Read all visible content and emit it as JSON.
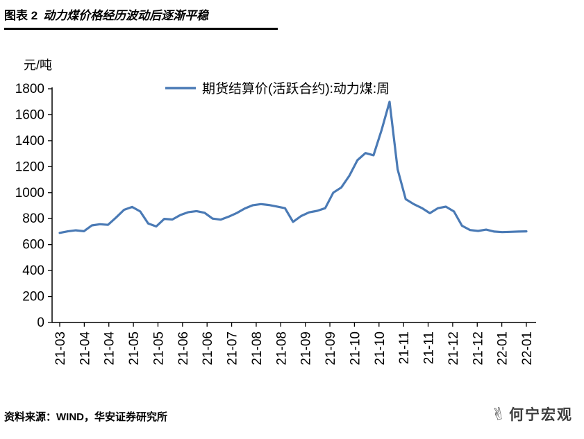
{
  "header": {
    "prefix": "图表 2",
    "title": "动力煤价格经历波动后逐渐平稳"
  },
  "chart_data": {
    "type": "line",
    "title": "",
    "ylabel": "元/吨",
    "legend": [
      "期货结算价(活跃合约):动力煤:周"
    ],
    "legend_position": "top",
    "line_color": "#4a7ab5",
    "ylim": [
      0,
      1800
    ],
    "ytick_step": 200,
    "grid": "off",
    "x_tick_labels": [
      "21-03",
      "21-04",
      "21-04",
      "21-05",
      "21-05",
      "21-06",
      "21-06",
      "21-07",
      "21-08",
      "21-08",
      "21-09",
      "21-09",
      "21-10",
      "21-10",
      "21-11",
      "21-11",
      "21-12",
      "21-12",
      "22-01",
      "22-01"
    ],
    "x_unit": "week",
    "values": [
      690,
      702,
      710,
      703,
      748,
      757,
      752,
      808,
      868,
      890,
      855,
      762,
      740,
      798,
      793,
      828,
      850,
      858,
      845,
      800,
      792,
      815,
      843,
      878,
      903,
      912,
      905,
      893,
      880,
      775,
      820,
      848,
      860,
      880,
      1000,
      1040,
      1130,
      1250,
      1305,
      1288,
      1480,
      1700,
      1180,
      950,
      912,
      882,
      842,
      880,
      892,
      855,
      745,
      712,
      705,
      715,
      700,
      696,
      698,
      700,
      702
    ]
  },
  "footer": {
    "source": "资料来源：WIND，华安证券研究所"
  },
  "brand": {
    "icon": "✌",
    "name": "何宁宏观"
  }
}
